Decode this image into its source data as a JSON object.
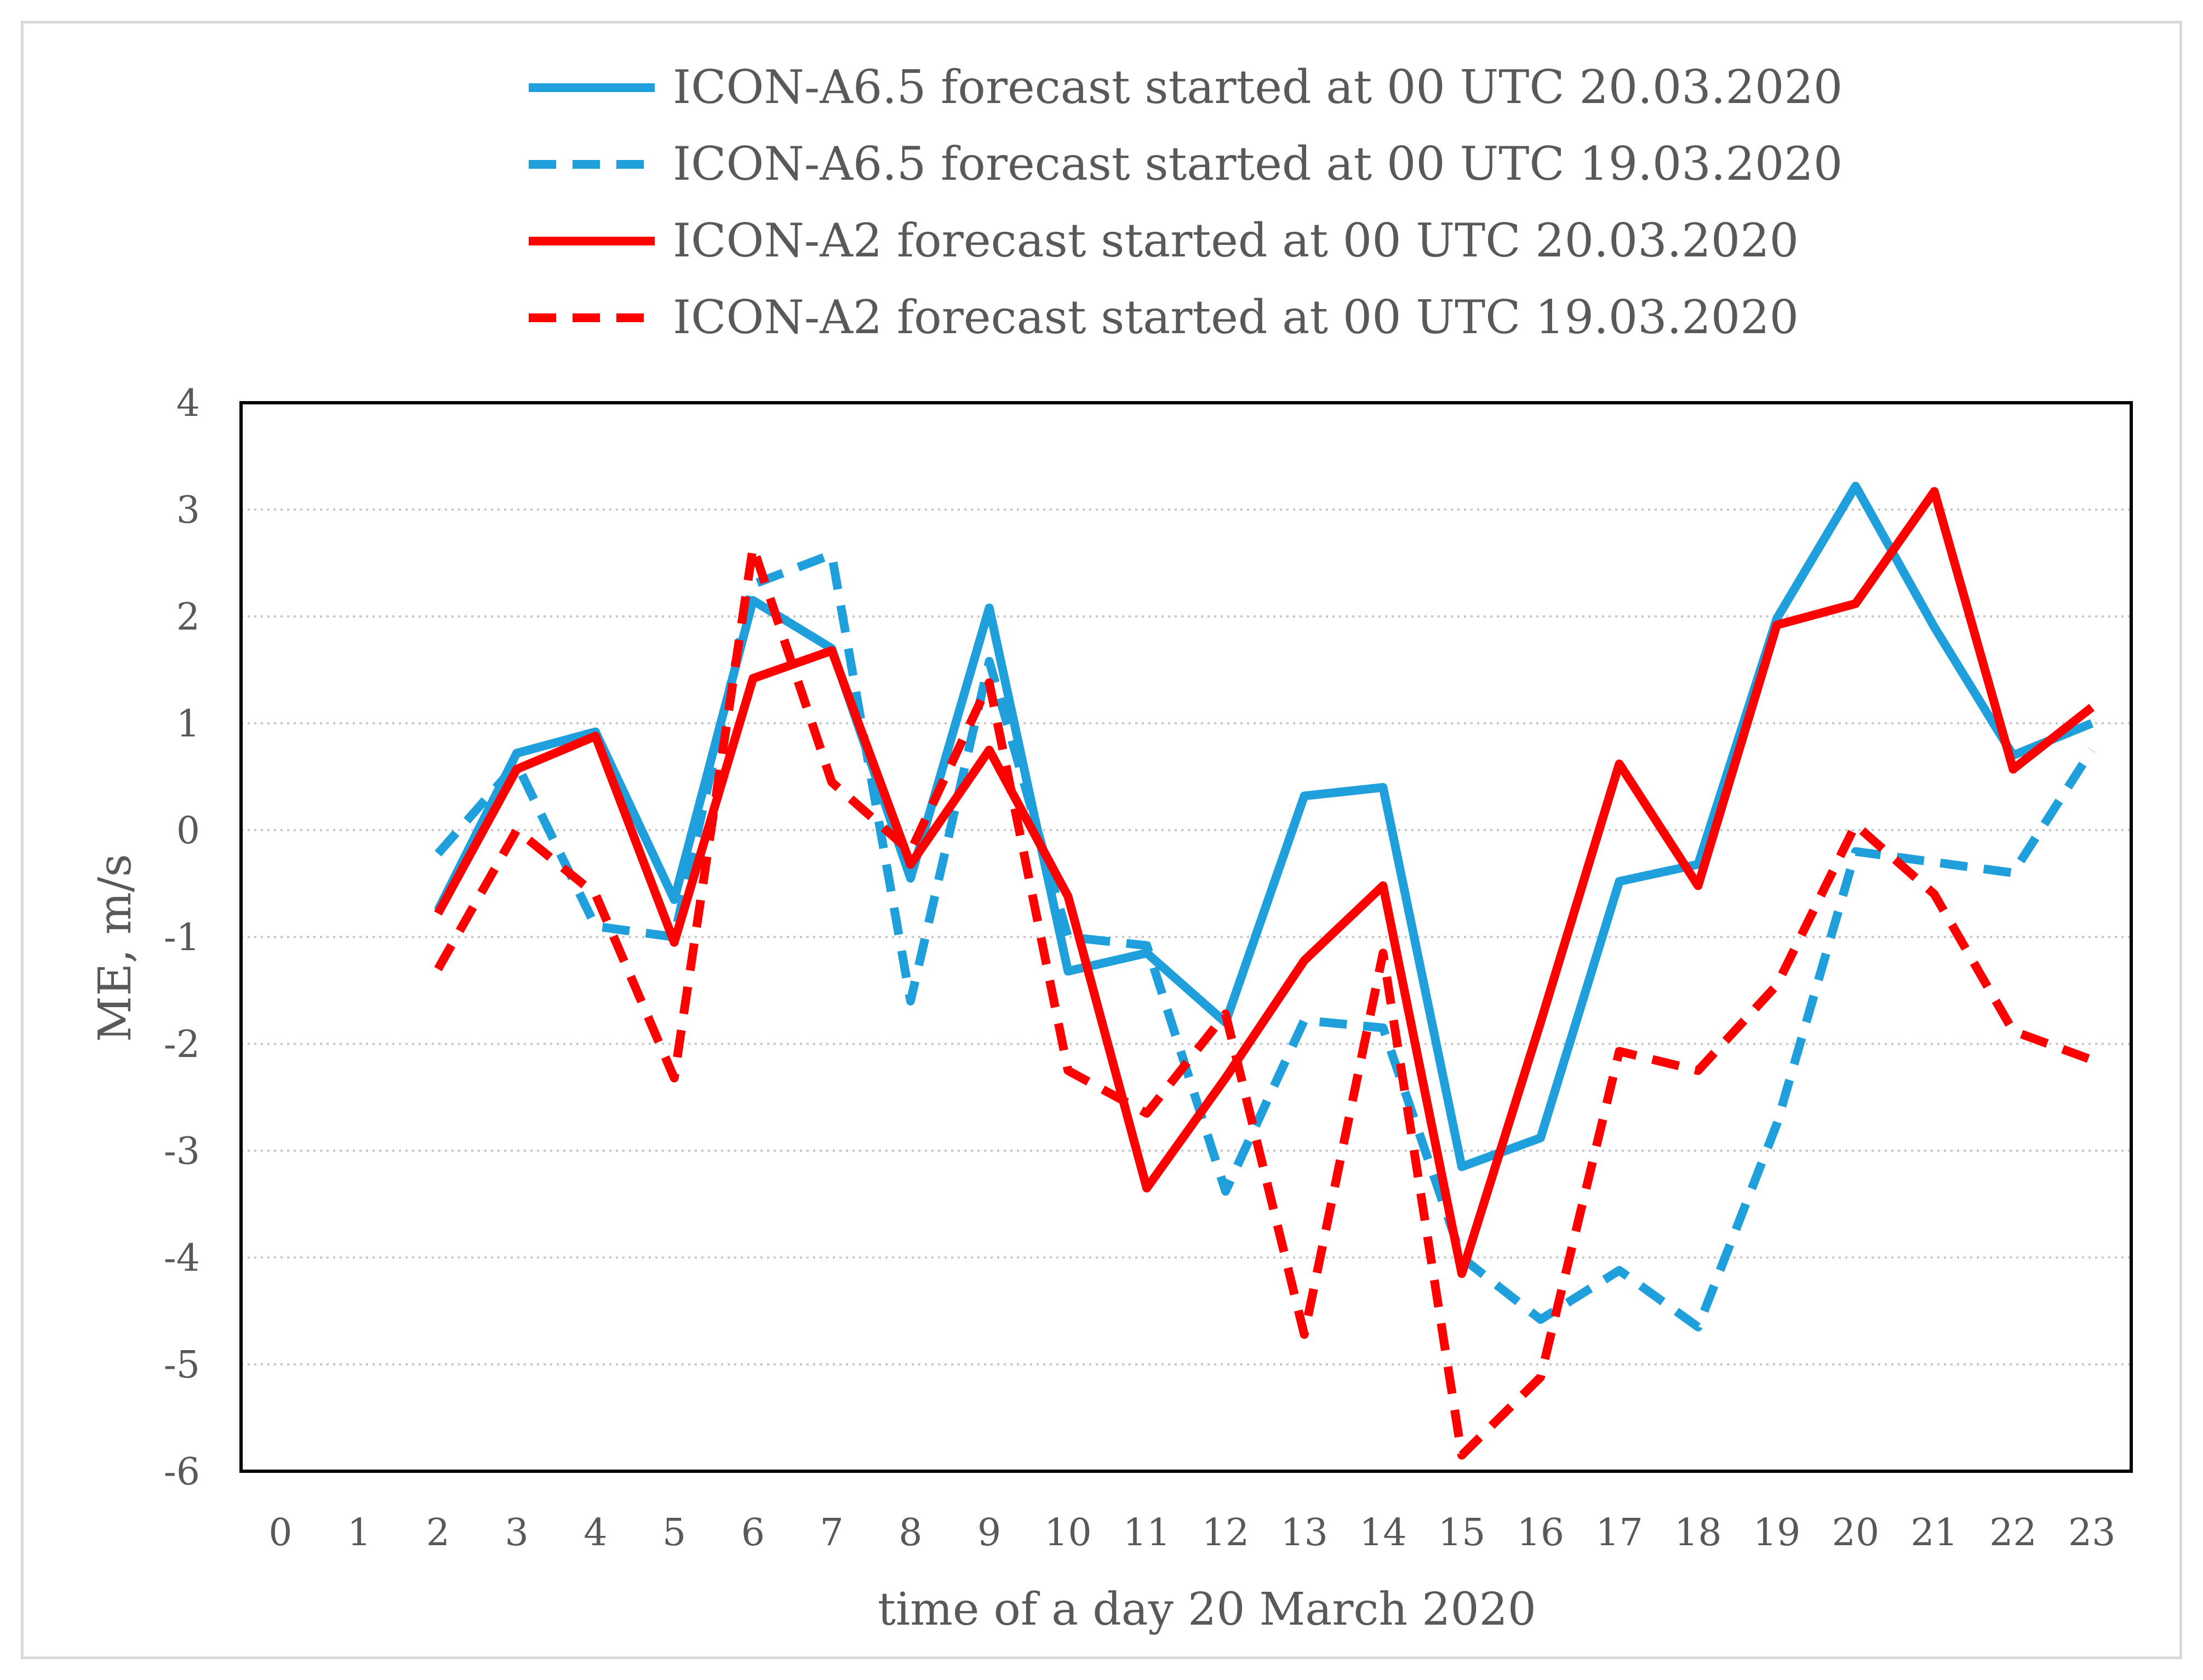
{
  "chart_data": {
    "type": "line",
    "title": "",
    "xlabel": "time of a day 20 March 2020",
    "ylabel": "ME, m/s",
    "ylim": [
      -6,
      4
    ],
    "yticks": [
      4,
      3,
      2,
      1,
      0,
      -1,
      -2,
      -3,
      -4,
      -5,
      -6
    ],
    "ytick_labels": [
      "4",
      "3",
      "2",
      "1",
      "0",
      "-1",
      "-2",
      "-3",
      "-4",
      "-5",
      "-6"
    ],
    "x": [
      0,
      1,
      2,
      3,
      4,
      5,
      6,
      7,
      8,
      9,
      10,
      11,
      12,
      13,
      14,
      15,
      16,
      17,
      18,
      19,
      20,
      21,
      22,
      23
    ],
    "xtick_labels": [
      "0",
      "1",
      "2",
      "3",
      "4",
      "5",
      "6",
      "7",
      "8",
      "9",
      "10",
      "11",
      "12",
      "13",
      "14",
      "15",
      "16",
      "17",
      "18",
      "19",
      "20",
      "21",
      "22",
      "23"
    ],
    "grid": "horizontal dotted",
    "legend_position": "top",
    "series": [
      {
        "name": "ICON-A6.5 forecast started at 00 UTC 20.03.2020",
        "color": "#1f9fdc",
        "dash": "solid",
        "x": [
          2,
          3,
          4,
          5,
          6,
          7,
          8,
          9,
          10,
          11,
          12,
          13,
          14,
          15,
          16,
          17,
          18,
          19,
          20,
          21,
          22,
          23
        ],
        "values": [
          -0.75,
          0.72,
          0.92,
          -0.65,
          2.15,
          1.7,
          -0.45,
          2.08,
          -1.32,
          -1.15,
          -1.8,
          0.32,
          0.4,
          -3.15,
          -2.88,
          -0.48,
          -0.32,
          1.98,
          3.22,
          1.9,
          0.7,
          1.0
        ]
      },
      {
        "name": "ICON-A6.5 forecast started at 00 UTC 19.03.2020",
        "color": "#1f9fdc",
        "dash": "dashed",
        "x": [
          2,
          3,
          4,
          5,
          6,
          7,
          8,
          9,
          10,
          11,
          12,
          13,
          14,
          15,
          16,
          17,
          18,
          19,
          20,
          21,
          22,
          23
        ],
        "values": [
          -0.22,
          0.62,
          -0.9,
          -1.0,
          2.3,
          2.58,
          -1.6,
          1.58,
          -1.0,
          -1.08,
          -3.38,
          -1.78,
          -1.85,
          -4.0,
          -4.58,
          -4.12,
          -4.65,
          -2.75,
          -0.2,
          -0.3,
          -0.4,
          0.75
        ]
      },
      {
        "name": "ICON-A2 forecast started at 00 UTC 20.03.2020",
        "color": "#ff0000",
        "dash": "solid",
        "x": [
          2,
          3,
          4,
          5,
          6,
          7,
          8,
          9,
          10,
          11,
          12,
          13,
          14,
          15,
          16,
          17,
          18,
          19,
          20,
          21,
          22,
          23
        ],
        "values": [
          -0.78,
          0.57,
          0.88,
          -1.05,
          1.42,
          1.68,
          -0.32,
          0.75,
          -0.62,
          -3.35,
          -2.32,
          -1.22,
          -0.52,
          -4.15,
          -1.8,
          0.62,
          -0.52,
          1.92,
          2.12,
          3.17,
          0.57,
          1.15
        ]
      },
      {
        "name": "ICON-A2 forecast started at 00 UTC 19.03.2020",
        "color": "#ff0000",
        "dash": "dashed",
        "x": [
          2,
          3,
          4,
          5,
          6,
          7,
          8,
          9,
          10,
          11,
          12,
          13,
          14,
          15,
          16,
          17,
          18,
          19,
          20,
          21,
          22,
          23
        ],
        "values": [
          -1.3,
          0.0,
          -0.6,
          -2.32,
          2.65,
          0.45,
          -0.2,
          1.38,
          -2.25,
          -2.65,
          -1.72,
          -4.72,
          -1.15,
          -5.85,
          -5.12,
          -2.07,
          -2.25,
          -1.45,
          0.05,
          -0.6,
          -1.88,
          -2.15
        ]
      }
    ]
  }
}
